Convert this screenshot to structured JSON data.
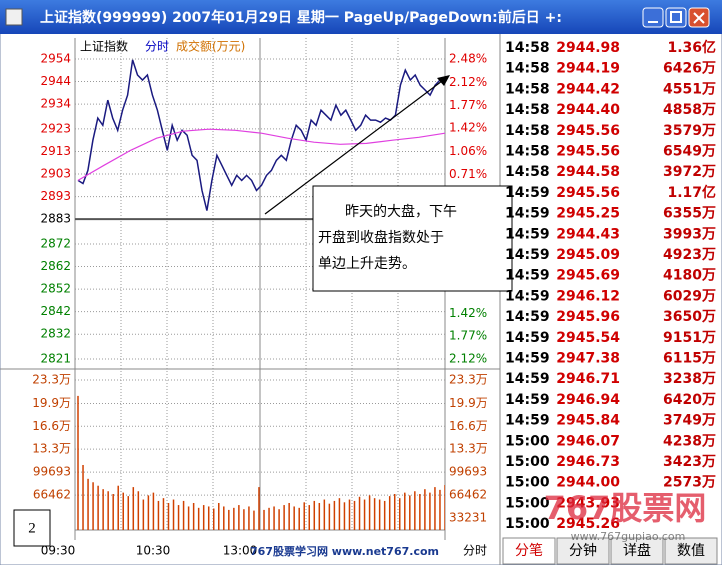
{
  "window": {
    "title": "上证指数(999999) 2007年01月29日 星期一 PageUp/PageDown:前后日 +:"
  },
  "chart_data": {
    "type": "line",
    "legend": [
      "上证指数",
      "分时",
      "成交额(万元)"
    ],
    "ylim": [
      2821,
      2954
    ],
    "yticks": [
      2954,
      2944,
      2934,
      2923,
      2913,
      2903,
      2893,
      2883,
      2872,
      2862,
      2852,
      2842,
      2832,
      2821
    ],
    "y2lim": [
      -2.12,
      2.48
    ],
    "y2ticks": [
      {
        "value": 2.48,
        "label": "2.48%"
      },
      {
        "value": 2.12,
        "label": "2.12%"
      },
      {
        "value": 1.77,
        "label": "1.77%"
      },
      {
        "value": 1.42,
        "label": "1.42%"
      },
      {
        "value": 1.06,
        "label": "1.06%"
      },
      {
        "value": 0.71,
        "label": "0.71%"
      },
      {
        "value": -1.42,
        "label": "1.42%"
      },
      {
        "value": -1.77,
        "label": "1.77%"
      },
      {
        "value": -2.12,
        "label": "2.12%"
      }
    ],
    "vlim": [
      0,
      233000
    ],
    "vticks": [
      {
        "value": 233000,
        "label": "23.3万"
      },
      {
        "value": 199000,
        "label": "19.9万"
      },
      {
        "value": 166000,
        "label": "16.6万"
      },
      {
        "value": 133000,
        "label": "13.3万"
      },
      99693,
      66462
    ],
    "vticks_right": [
      {
        "value": 233000,
        "label": "23.3万"
      },
      {
        "value": 199000,
        "label": "19.9万"
      },
      {
        "value": 166000,
        "label": "16.6万"
      },
      {
        "value": 133000,
        "label": "13.3万"
      },
      99693,
      66462,
      33231
    ],
    "x_labels": [
      "09:30",
      "10:30",
      "13:00",
      "分时"
    ],
    "series": [
      {
        "name": "price",
        "color": "#1a1a80",
        "values": [
          2900.2,
          2898.8,
          2904.6,
          2918.0,
          2927.8,
          2924.6,
          2935.8,
          2927.8,
          2922.4,
          2931.3,
          2938.0,
          2953.6,
          2946.9,
          2944.7,
          2946.9,
          2938.0,
          2931.3,
          2922.4,
          2913.5,
          2924.6,
          2918.0,
          2922.4,
          2920.2,
          2911.3,
          2909.1,
          2895.7,
          2886.8,
          2900.2,
          2911.3,
          2906.9,
          2902.4,
          2898.0,
          2902.4,
          2900.2,
          2902.4,
          2900.2,
          2895.7,
          2898.0,
          2902.4,
          2904.6,
          2909.1,
          2911.3,
          2909.1,
          2918.0,
          2924.6,
          2922.4,
          2918.0,
          2926.9,
          2924.6,
          2931.3,
          2929.1,
          2926.9,
          2933.5,
          2929.1,
          2931.3,
          2926.9,
          2922.4,
          2924.6,
          2929.1,
          2926.9,
          2926.9,
          2926.0,
          2927.8,
          2926.9,
          2929.1,
          2942.4,
          2949.1,
          2944.7,
          2946.9,
          2942.4,
          2940.2,
          2938.0,
          2942.4,
          2944.7,
          2945.5
        ]
      },
      {
        "name": "average",
        "color": "#e040e0",
        "values": [
          2900.2,
          2906.9,
          2913.5,
          2918.9,
          2922.0,
          2922.9,
          2922.4,
          2921.1,
          2918.9,
          2917.1,
          2916.2,
          2916.6,
          2918.0,
          2919.3,
          2921.1
        ]
      },
      {
        "name": "volume",
        "color": "#d04000",
        "values": [
          210000,
          110000,
          90000,
          85000,
          80000,
          75000,
          72000,
          68000,
          80000,
          70000,
          65000,
          78000,
          72000,
          60000,
          66000,
          70000,
          58000,
          62000,
          55000,
          60000,
          52000,
          58000,
          50000,
          55000,
          48000,
          52000,
          50000,
          47000,
          55000,
          50000,
          45000,
          48000,
          52000,
          46000,
          50000,
          44000,
          78000,
          45000,
          48000,
          50000,
          46000,
          52000,
          55000,
          50000,
          48000,
          56000,
          52000,
          58000,
          55000,
          60000,
          54000,
          58000,
          62000,
          56000,
          60000,
          58000,
          64000,
          60000,
          66000,
          62000,
          60000,
          58000,
          65000,
          68000,
          62000,
          70000,
          66000,
          72000,
          68000,
          75000,
          70000,
          78000,
          74000,
          81000
        ]
      }
    ]
  },
  "annotation": {
    "label": "2",
    "lines": [
      "昨天的大盘，下午",
      "开盘到收盘指数处于",
      "单边上升走势。"
    ]
  },
  "trades": {
    "rows": [
      [
        "14:58",
        "2944.98",
        "1.36亿"
      ],
      [
        "14:58",
        "2944.19",
        "6426万"
      ],
      [
        "14:58",
        "2944.42",
        "4551万"
      ],
      [
        "14:58",
        "2944.40",
        "4858万"
      ],
      [
        "14:58",
        "2945.56",
        "3579万"
      ],
      [
        "14:58",
        "2945.56",
        "6549万"
      ],
      [
        "14:58",
        "2944.58",
        "3972万"
      ],
      [
        "14:59",
        "2945.56",
        "1.17亿"
      ],
      [
        "14:59",
        "2945.25",
        "6355万"
      ],
      [
        "14:59",
        "2944.43",
        "3993万"
      ],
      [
        "14:59",
        "2945.09",
        "4923万"
      ],
      [
        "14:59",
        "2945.69",
        "4180万"
      ],
      [
        "14:59",
        "2946.12",
        "6029万"
      ],
      [
        "14:59",
        "2945.96",
        "3650万"
      ],
      [
        "14:59",
        "2945.54",
        "9151万"
      ],
      [
        "14:59",
        "2947.38",
        "6115万"
      ],
      [
        "14:59",
        "2946.71",
        "3238万"
      ],
      [
        "14:59",
        "2946.94",
        "6420万"
      ],
      [
        "14:59",
        "2945.84",
        "3749万"
      ],
      [
        "15:00",
        "2946.07",
        "4238万"
      ],
      [
        "15:00",
        "2946.73",
        "3423万"
      ],
      [
        "15:00",
        "2944.00",
        "2573万"
      ],
      [
        "15:00",
        "2943.93"
      ],
      [
        "15:00",
        "2945.26"
      ]
    ],
    "tabs": [
      "分笔",
      "分钟",
      "详盘",
      "数值"
    ]
  },
  "watermark": {
    "site": "767股票网",
    "url": "www.767gupiao.com",
    "footer": "767股票学习网 www.net767.com"
  }
}
